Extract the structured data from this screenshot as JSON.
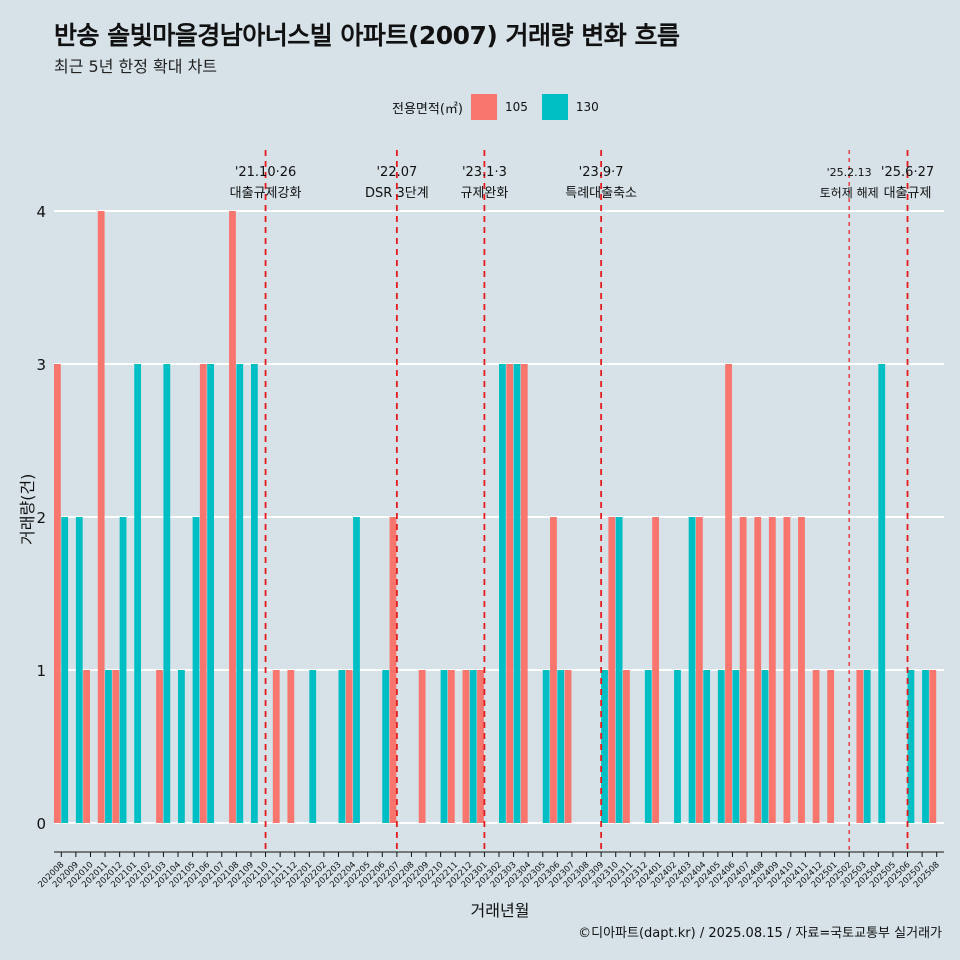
{
  "title": "반송 솔빛마을경남아너스빌 아파트(2007) 거래량 변화 흐름",
  "subtitle": "최근 5년 한정 확대 차트",
  "legend_title": "전용면적(㎡)",
  "caption": "©디아파트(dapt.kr) / 2025.08.15 / 자료=국토교통부 실거래가",
  "colors": {
    "background": "#d6e2e8",
    "s105": "#f8766d",
    "s130": "#00bfc4",
    "vline": "#e41a1c",
    "grid": "#ffffff"
  },
  "chart_data": {
    "type": "bar",
    "xlabel": "거래년월",
    "ylabel": "거래량(건)",
    "ylim": [
      0,
      4
    ],
    "yticks": [
      0,
      1,
      2,
      3,
      4
    ],
    "grid": true,
    "legend_position": "top",
    "categories": [
      "202008",
      "202009",
      "202010",
      "202011",
      "202012",
      "202101",
      "202102",
      "202103",
      "202104",
      "202105",
      "202106",
      "202107",
      "202108",
      "202109",
      "202110",
      "202111",
      "202112",
      "202201",
      "202202",
      "202203",
      "202204",
      "202205",
      "202206",
      "202207",
      "202208",
      "202209",
      "202210",
      "202211",
      "202212",
      "202301",
      "202302",
      "202303",
      "202304",
      "202305",
      "202306",
      "202307",
      "202308",
      "202309",
      "202310",
      "202311",
      "202312",
      "202401",
      "202402",
      "202403",
      "202404",
      "202405",
      "202406",
      "202407",
      "202408",
      "202409",
      "202410",
      "202411",
      "202412",
      "202501",
      "202502",
      "202503",
      "202504",
      "202505",
      "202506",
      "202507",
      "202508"
    ],
    "series": [
      {
        "name": "105",
        "values": [
          3,
          0,
          1,
          4,
          1,
          0,
          0,
          1,
          0,
          0,
          3,
          0,
          4,
          0,
          0,
          1,
          1,
          0,
          0,
          0,
          1,
          0,
          0,
          2,
          0,
          1,
          0,
          1,
          1,
          1,
          0,
          3,
          3,
          0,
          2,
          1,
          0,
          0,
          2,
          1,
          0,
          2,
          0,
          0,
          2,
          0,
          3,
          2,
          2,
          2,
          2,
          2,
          1,
          1,
          0,
          1,
          0,
          0,
          0,
          0,
          1
        ]
      },
      {
        "name": "130",
        "values": [
          2,
          2,
          0,
          1,
          2,
          3,
          0,
          3,
          1,
          2,
          3,
          0,
          3,
          3,
          0,
          0,
          0,
          1,
          0,
          1,
          2,
          0,
          1,
          0,
          0,
          0,
          1,
          0,
          1,
          0,
          3,
          3,
          0,
          1,
          1,
          0,
          0,
          1,
          2,
          0,
          1,
          0,
          1,
          2,
          1,
          1,
          1,
          0,
          1,
          0,
          0,
          0,
          0,
          0,
          0,
          1,
          3,
          0,
          1,
          1,
          0
        ]
      }
    ],
    "annotations": [
      {
        "date": "'21.10·26",
        "label": "대출규제강화",
        "at": "202110"
      },
      {
        "date": "'22.07",
        "label": "DSR 3단계",
        "at": "202207"
      },
      {
        "date": "'23.1·3",
        "label": "규제완화",
        "at": "202301"
      },
      {
        "date": "'23.9·7",
        "label": "특례대출축소",
        "at": "202309"
      },
      {
        "date": "'25.2.13",
        "label": "토허제 해제",
        "at": "202502"
      },
      {
        "date": "'25.6·27",
        "label": "대출규제",
        "at": "202506"
      }
    ]
  }
}
